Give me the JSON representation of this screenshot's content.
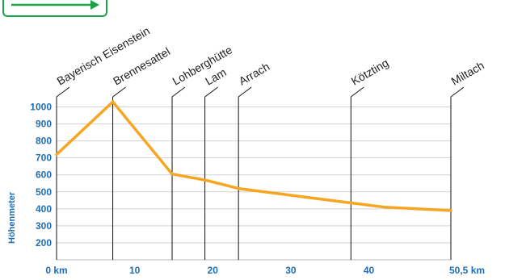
{
  "chart_data": {
    "type": "line",
    "title": "",
    "xlabel": "",
    "ylabel": "Höhenmeter",
    "xlim": [
      0,
      50.5
    ],
    "ylim": [
      100,
      1050
    ],
    "xticks": [
      {
        "value": 0,
        "label": "0 km"
      },
      {
        "value": 10,
        "label": "10"
      },
      {
        "value": 20,
        "label": "20"
      },
      {
        "value": 30,
        "label": "30"
      },
      {
        "value": 40,
        "label": "40"
      },
      {
        "value": 50.5,
        "label": "50,5 km"
      }
    ],
    "yticks": [
      200,
      300,
      400,
      500,
      600,
      700,
      800,
      900,
      1000
    ],
    "grid": true,
    "series": [
      {
        "color": "#f5a623",
        "points": [
          {
            "x": 0,
            "y": 720
          },
          {
            "x": 7.2,
            "y": 1030
          },
          {
            "x": 14.8,
            "y": 605
          },
          {
            "x": 19.0,
            "y": 570
          },
          {
            "x": 23.3,
            "y": 520
          },
          {
            "x": 30.0,
            "y": 480
          },
          {
            "x": 37.7,
            "y": 435
          },
          {
            "x": 42.0,
            "y": 410
          },
          {
            "x": 50.5,
            "y": 390
          }
        ]
      }
    ],
    "places": [
      {
        "label": "Bayerisch Eisenstein",
        "x": 0
      },
      {
        "label": "Brennesattel",
        "x": 7.2
      },
      {
        "label": "Lohberghütte",
        "x": 14.8
      },
      {
        "label": "Lam",
        "x": 19.0
      },
      {
        "label": "Arrach",
        "x": 23.3
      },
      {
        "label": "Kötzting",
        "x": 37.7
      },
      {
        "label": "Miltach",
        "x": 50.5
      }
    ]
  },
  "legend": {
    "arrow_color": "#1aa34a"
  }
}
